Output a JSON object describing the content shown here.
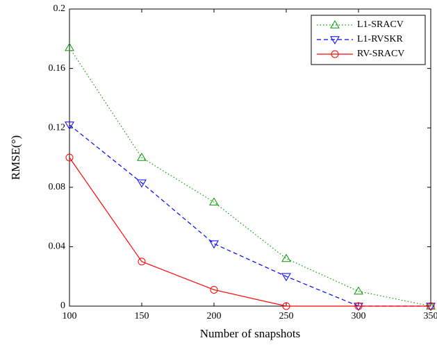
{
  "chart_data": {
    "type": "line",
    "x": [
      100,
      150,
      200,
      250,
      300,
      350
    ],
    "xlabel": "Number of snapshots",
    "ylabel": "RMSE(°)",
    "xlim": [
      100,
      350
    ],
    "xticks": [
      100,
      150,
      200,
      250,
      300,
      350
    ],
    "ylim": [
      0,
      0.2
    ],
    "yticks": [
      0,
      0.04,
      0.08,
      0.12,
      0.16,
      0.2
    ],
    "legend": "upper right",
    "series": [
      {
        "name": "L1-SRACV",
        "color": "#009900",
        "line_style": "dotted",
        "marker": "triangle-up",
        "values": [
          0.174,
          0.1,
          0.07,
          0.032,
          0.01,
          0
        ]
      },
      {
        "name": "L1-RVSKR",
        "color": "#0000ff",
        "line_style": "dashed",
        "marker": "triangle-down",
        "values": [
          0.122,
          0.083,
          0.042,
          0.02,
          0,
          0
        ]
      },
      {
        "name": "RV-SRACV",
        "color": "#ff0000",
        "line_style": "solid",
        "marker": "circle",
        "values": [
          0.1,
          0.03,
          0.011,
          0,
          0,
          0
        ]
      }
    ]
  }
}
